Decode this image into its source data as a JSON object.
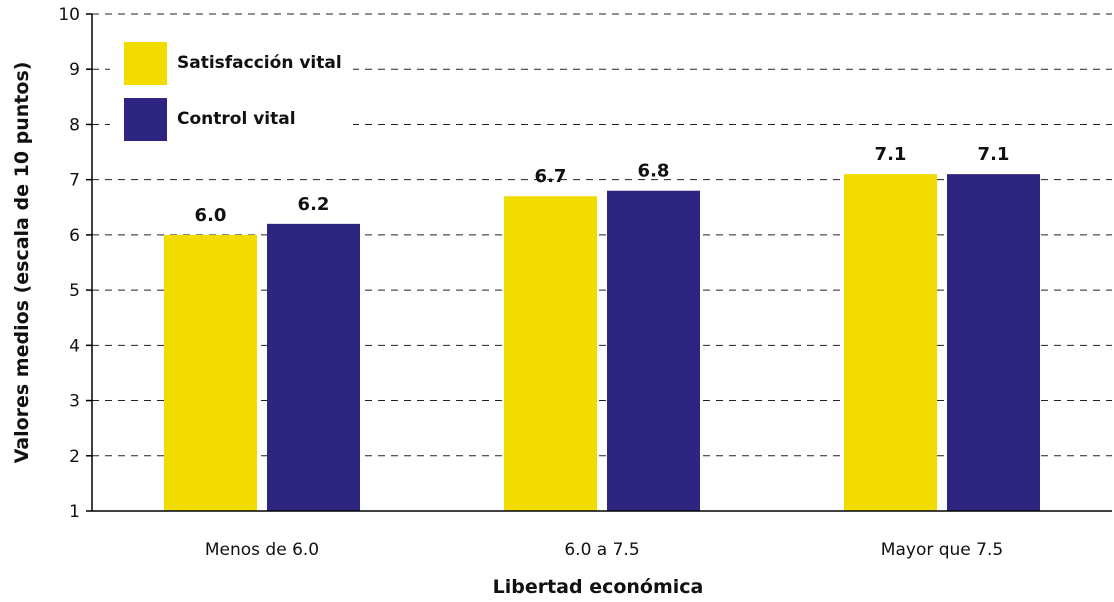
{
  "chart_data": {
    "type": "bar",
    "xlabel": "Libertad económica",
    "ylabel": "Valores medios (escala de 10 puntos)",
    "categories": [
      "Menos de 6.0",
      "6.0 a 7.5",
      "Mayor que 7.5"
    ],
    "series": [
      {
        "name": "Satisfacción vital",
        "values": [
          6.0,
          6.7,
          7.1
        ],
        "labels": [
          "6.0",
          "6.7",
          "7.1"
        ],
        "color": "#f2dc00"
      },
      {
        "name": "Control vital",
        "values": [
          6.2,
          6.8,
          7.1
        ],
        "labels": [
          "6.2",
          "6.8",
          "7.1"
        ],
        "color": "#2e2580"
      }
    ],
    "ylim": [
      1,
      10
    ],
    "yticks": [
      "1",
      "2",
      "3",
      "4",
      "5",
      "6",
      "7",
      "8",
      "9",
      "10"
    ],
    "grid": true,
    "legend_position": "top-left"
  }
}
